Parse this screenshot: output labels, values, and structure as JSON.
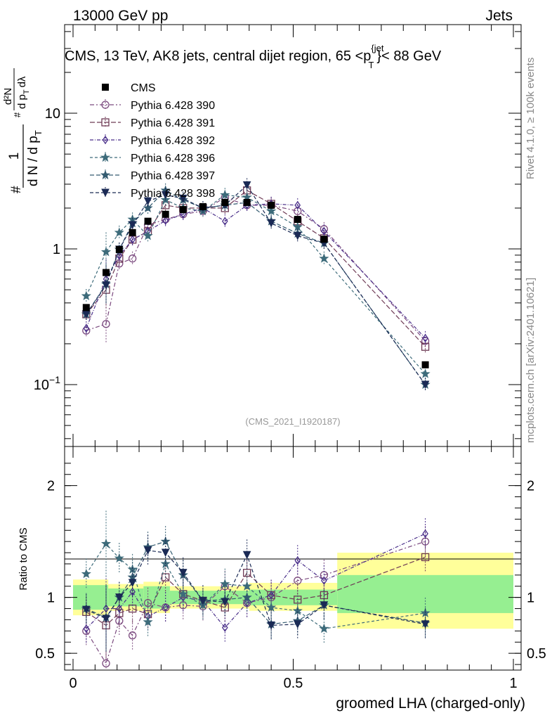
{
  "header": {
    "left": "13000 GeV pp",
    "right": "Jets"
  },
  "side": {
    "rivet": "Rivet 4.1.0, ≥ 100k events",
    "mcplots": "mcplots.cern.ch [arXiv:2401.10621]"
  },
  "chart_data": {
    "type": "line",
    "title": "CMS, 13 TeV, AK8 jets, central dijet region, 65 <p",
    "title_sup": "{jet",
    "title_sub": "T",
    "title_end": "}< 88 GeV",
    "analysis_id": "(CMS_2021_I1920187)",
    "xlabel": "groomed LHA (charged-only)",
    "ylabel_top": "1",
    "ylabel_frac": "d N / d p",
    "ylabel_frac_sub": "T",
    "ylabel_hash": "#",
    "ylabel_num": "d²N",
    "ylabel_den": "d p",
    "ylabel_den_sub": "T",
    "ylabel_dlambda": "dλ",
    "ratio_ylabel": "Ratio to CMS",
    "xlim": [
      0,
      1
    ],
    "ylim": [
      0.035,
      45
    ],
    "ratio_ylim": [
      0.35,
      2.35
    ],
    "x_ticks": [
      {
        "v": 0,
        "label": "0"
      },
      {
        "v": 0.5,
        "label": "0.5"
      },
      {
        "v": 1,
        "label": "1"
      }
    ],
    "y_ticks": [
      {
        "v": 0.1,
        "base": "10",
        "exp": "−1"
      },
      {
        "v": 1,
        "base": "1",
        "exp": ""
      },
      {
        "v": 10,
        "base": "10",
        "exp": ""
      }
    ],
    "ratio_ticks": [
      {
        "v": 0.5,
        "label": "0.5"
      },
      {
        "v": 1,
        "label": "1"
      },
      {
        "v": 2,
        "label": "2"
      }
    ],
    "x": [
      0.03,
      0.075,
      0.105,
      0.135,
      0.17,
      0.21,
      0.25,
      0.295,
      0.345,
      0.395,
      0.45,
      0.51,
      0.57,
      0.8
    ],
    "data": {
      "name": "CMS",
      "values": [
        0.37,
        0.67,
        0.99,
        1.32,
        1.6,
        1.8,
        1.95,
        2.05,
        2.2,
        2.2,
        2.1,
        1.65,
        1.18,
        0.14
      ]
    },
    "series": [
      {
        "name": "Pythia 6.428 390",
        "color": "#7b4a7f",
        "marker": "circle",
        "dash": "6,3,2,3",
        "values": [
          0.25,
          0.28,
          0.78,
          0.85,
          1.5,
          1.65,
          1.8,
          1.9,
          2.4,
          2.1,
          2.1,
          1.9,
          1.4,
          0.21
        ]
      },
      {
        "name": "Pythia 6.428 391",
        "color": "#6e3a55",
        "marker": "square",
        "dash": "7,3",
        "values": [
          0.33,
          0.5,
          0.85,
          1.17,
          1.35,
          2.1,
          2.0,
          2.0,
          2.0,
          2.7,
          2.15,
          1.6,
          1.2,
          0.19
        ]
      },
      {
        "name": "Pythia 6.428 392",
        "color": "#4a2f8a",
        "marker": "diamond",
        "dash": "5,2,1,2",
        "values": [
          0.26,
          0.6,
          0.89,
          1.17,
          1.35,
          1.62,
          1.8,
          2.0,
          1.6,
          2.1,
          2.15,
          2.1,
          1.35,
          0.22
        ]
      },
      {
        "name": "Pythia 6.428 396",
        "color": "#3d6b7a",
        "marker": "star",
        "dash": "4,3",
        "values": [
          0.45,
          0.95,
          1.32,
          1.65,
          1.25,
          2.3,
          2.0,
          1.9,
          2.5,
          2.4,
          1.9,
          1.45,
          0.85,
          0.12
        ]
      },
      {
        "name": "Pythia 6.428 397",
        "color": "#335b70",
        "marker": "star",
        "dash": "6,3",
        "values": [
          0.33,
          0.55,
          0.99,
          1.55,
          2.0,
          2.7,
          2.3,
          2.0,
          2.1,
          2.2,
          1.6,
          1.3,
          1.1,
          0.1
        ]
      },
      {
        "name": "Pythia 6.428 398",
        "color": "#1b2a55",
        "marker": "tri-down",
        "dash": "5,3",
        "values": [
          0.33,
          0.54,
          0.99,
          1.5,
          2.25,
          2.5,
          2.35,
          2.0,
          2.1,
          2.95,
          1.55,
          1.25,
          1.1,
          0.1
        ]
      }
    ],
    "ratio_series": [
      [
        0.7,
        0.41,
        0.79,
        0.66,
        0.95,
        0.91,
        0.93,
        0.92,
        1.1,
        0.95,
        1.0,
        1.15,
        1.2,
        1.5
      ],
      [
        0.87,
        0.75,
        0.86,
        0.9,
        0.85,
        1.18,
        1.03,
        0.97,
        0.91,
        1.22,
        1.02,
        0.98,
        1.02,
        1.36
      ],
      [
        0.72,
        0.9,
        0.9,
        1.05,
        0.83,
        0.91,
        1.0,
        0.97,
        0.73,
        0.95,
        1.02,
        1.33,
        1.15,
        1.57
      ],
      [
        1.21,
        1.48,
        1.35,
        1.25,
        0.78,
        1.3,
        1.03,
        0.93,
        1.12,
        1.1,
        0.91,
        0.88,
        0.72,
        0.86
      ],
      [
        0.9,
        0.82,
        1.0,
        1.18,
        1.45,
        1.5,
        1.2,
        0.97,
        0.98,
        1.0,
        0.76,
        0.79,
        0.93,
        0.77
      ],
      [
        0.89,
        0.81,
        1.0,
        1.13,
        1.42,
        1.4,
        1.22,
        0.97,
        0.96,
        1.38,
        0.75,
        0.76,
        0.93,
        0.76
      ]
    ],
    "bands": [
      {
        "x0": 0,
        "x1": 0.08,
        "green": [
          0.89,
          1.11
        ],
        "yellow": [
          0.84,
          1.16
        ]
      },
      {
        "x0": 0.08,
        "x1": 0.16,
        "green": [
          0.92,
          1.08
        ],
        "yellow": [
          0.88,
          1.12
        ]
      },
      {
        "x0": 0.16,
        "x1": 0.22,
        "green": [
          0.9,
          1.1
        ],
        "yellow": [
          0.86,
          1.14
        ]
      },
      {
        "x0": 0.22,
        "x1": 0.4,
        "green": [
          0.94,
          1.06
        ],
        "yellow": [
          0.9,
          1.1
        ]
      },
      {
        "x0": 0.4,
        "x1": 0.6,
        "green": [
          0.93,
          1.07
        ],
        "yellow": [
          0.88,
          1.13
        ]
      },
      {
        "x0": 0.6,
        "x1": 1.0,
        "green": [
          0.86,
          1.2
        ],
        "yellow": [
          0.72,
          1.4
        ]
      }
    ]
  }
}
